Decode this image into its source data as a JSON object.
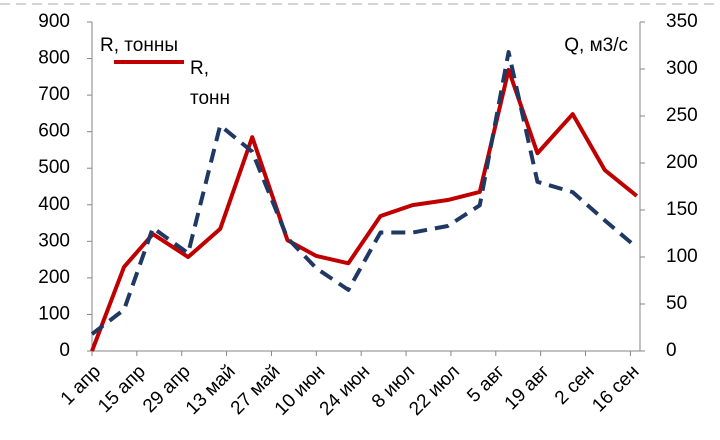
{
  "chart_data": {
    "type": "line",
    "y_label": "R, тонны",
    "y2_label": "Q, м3/с",
    "x": [
      0,
      10,
      19,
      30,
      40,
      50,
      61,
      70,
      80,
      90,
      100,
      111,
      121,
      130,
      139,
      150,
      160,
      170
    ],
    "series": [
      {
        "name": "R, тонн",
        "color": "#c00000",
        "dash": false,
        "axis": "y",
        "values": [
          0,
          230,
          320,
          257,
          334,
          585,
          303,
          260,
          240,
          369,
          399,
          413,
          435,
          769,
          541,
          648,
          495,
          424
        ]
      },
      {
        "color": "#1f3864",
        "dash": true,
        "axis": "y2",
        "values": [
          18,
          44,
          131,
          104,
          240,
          212,
          120,
          88,
          65,
          126,
          126,
          133,
          155,
          318,
          180,
          169,
          139,
          110
        ]
      }
    ],
    "xlim": [
      0,
      171
    ],
    "xticks": [
      {
        "value": 0,
        "label": "1 апр"
      },
      {
        "value": 14,
        "label": "15 апр"
      },
      {
        "value": 28,
        "label": "29 апр"
      },
      {
        "value": 42,
        "label": "13 май"
      },
      {
        "value": 56,
        "label": "27 май"
      },
      {
        "value": 70,
        "label": "10 июн"
      },
      {
        "value": 84,
        "label": "24 июн"
      },
      {
        "value": 98,
        "label": "8 июл"
      },
      {
        "value": 112,
        "label": "22 июл"
      },
      {
        "value": 126,
        "label": "5 авг"
      },
      {
        "value": 140,
        "label": "19 авг"
      },
      {
        "value": 154,
        "label": "2 сен"
      },
      {
        "value": 168,
        "label": "16 сен"
      }
    ],
    "ylim": [
      0,
      900
    ],
    "yticks": [
      0,
      100,
      200,
      300,
      400,
      500,
      600,
      700,
      800,
      900
    ],
    "y2lim": [
      0,
      350
    ],
    "y2ticks": [
      0,
      50,
      100,
      150,
      200,
      250,
      300,
      350
    ],
    "legend": "top-left"
  }
}
